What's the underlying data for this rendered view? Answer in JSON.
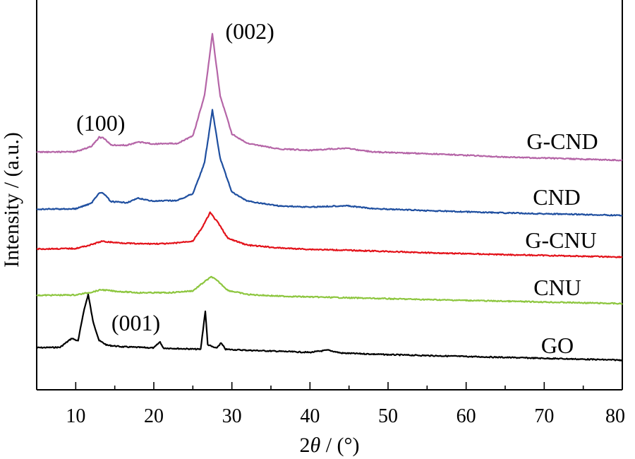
{
  "chart_data": {
    "type": "line",
    "xlabel_prefix": "2",
    "xlabel_var": "θ",
    "xlabel_suffix": " / (°)",
    "ylabel": "Intensity / (a.u.)",
    "xlim": [
      5,
      80
    ],
    "xticks": [
      10,
      20,
      30,
      40,
      50,
      60,
      70,
      80
    ],
    "y_ticks_shown": false,
    "grid": false,
    "legend": "labels beside each curve (right side)",
    "series": [
      {
        "name": "GO",
        "color": "#000000",
        "points": [
          [
            5,
            0.05
          ],
          [
            8,
            0.15
          ],
          [
            9.5,
            1.2
          ],
          [
            10.3,
            0.9
          ],
          [
            11.0,
            4.2
          ],
          [
            11.6,
            6.2
          ],
          [
            12.2,
            3.2
          ],
          [
            13.0,
            1.0
          ],
          [
            14,
            0.5
          ],
          [
            16,
            0.35
          ],
          [
            20,
            0.3
          ],
          [
            20.8,
            1.0
          ],
          [
            21.2,
            0.3
          ],
          [
            26,
            0.25
          ],
          [
            26.6,
            4.6
          ],
          [
            26.9,
            0.8
          ],
          [
            27.4,
            0.6
          ],
          [
            28,
            0.4
          ],
          [
            28.6,
            1.0
          ],
          [
            29.2,
            0.3
          ],
          [
            32,
            0.25
          ],
          [
            36.5,
            0.2
          ],
          [
            40,
            0.15
          ],
          [
            42.3,
            0.45
          ],
          [
            44,
            0.15
          ],
          [
            50,
            0.08
          ],
          [
            60,
            0.05
          ],
          [
            80,
            0.0
          ]
        ]
      },
      {
        "name": "CNU",
        "color": "#8dc63f",
        "points": [
          [
            5,
            0.15
          ],
          [
            10,
            0.25
          ],
          [
            12,
            0.6
          ],
          [
            13.3,
            0.9
          ],
          [
            15,
            0.75
          ],
          [
            18,
            0.6
          ],
          [
            22,
            0.65
          ],
          [
            25,
            0.9
          ],
          [
            26.5,
            2.0
          ],
          [
            27.4,
            2.6
          ],
          [
            28.3,
            2.0
          ],
          [
            29.5,
            1.0
          ],
          [
            32,
            0.55
          ],
          [
            36,
            0.4
          ],
          [
            40,
            0.35
          ],
          [
            45,
            0.3
          ],
          [
            55,
            0.2
          ],
          [
            65,
            0.12
          ],
          [
            80,
            0.0
          ]
        ]
      },
      {
        "name": "G-CNU",
        "color": "#e3121a",
        "points": [
          [
            5,
            0.1
          ],
          [
            10,
            0.2
          ],
          [
            12,
            0.6
          ],
          [
            13.3,
            0.95
          ],
          [
            15,
            0.85
          ],
          [
            18,
            0.75
          ],
          [
            22,
            0.8
          ],
          [
            25,
            1.1
          ],
          [
            26.3,
            2.6
          ],
          [
            27.2,
            4.0
          ],
          [
            28.2,
            3.0
          ],
          [
            29.5,
            1.4
          ],
          [
            32,
            0.75
          ],
          [
            36,
            0.5
          ],
          [
            40,
            0.4
          ],
          [
            45,
            0.35
          ],
          [
            55,
            0.2
          ],
          [
            65,
            0.1
          ],
          [
            80,
            0.0
          ]
        ]
      },
      {
        "name": "CND",
        "color": "#1f4fa0",
        "points": [
          [
            5,
            0.05
          ],
          [
            10,
            0.15
          ],
          [
            12,
            0.8
          ],
          [
            13.0,
            2.0
          ],
          [
            13.6,
            1.9
          ],
          [
            14.5,
            1.0
          ],
          [
            16.5,
            0.9
          ],
          [
            18,
            1.4
          ],
          [
            20,
            1.1
          ],
          [
            23,
            1.2
          ],
          [
            25,
            2.0
          ],
          [
            26.5,
            5.5
          ],
          [
            27.5,
            11.5
          ],
          [
            28.5,
            6.0
          ],
          [
            30,
            2.2
          ],
          [
            32,
            1.2
          ],
          [
            36,
            0.7
          ],
          [
            40,
            0.6
          ],
          [
            44.5,
            0.8
          ],
          [
            48,
            0.5
          ],
          [
            56,
            0.3
          ],
          [
            65,
            0.15
          ],
          [
            80,
            0.0
          ]
        ]
      },
      {
        "name": "G-CND",
        "color": "#b565a7",
        "points": [
          [
            5,
            0.05
          ],
          [
            10,
            0.15
          ],
          [
            12,
            0.8
          ],
          [
            13.0,
            1.9
          ],
          [
            13.6,
            1.8
          ],
          [
            14.5,
            1.0
          ],
          [
            16.5,
            1.0
          ],
          [
            18,
            1.4
          ],
          [
            20,
            1.2
          ],
          [
            23,
            1.3
          ],
          [
            25,
            2.2
          ],
          [
            26.5,
            7.0
          ],
          [
            27.5,
            14.3
          ],
          [
            28.5,
            7.0
          ],
          [
            30,
            2.5
          ],
          [
            32,
            1.4
          ],
          [
            36,
            0.8
          ],
          [
            40,
            0.7
          ],
          [
            44.5,
            1.0
          ],
          [
            48,
            0.6
          ],
          [
            56.5,
            0.45
          ],
          [
            65,
            0.2
          ],
          [
            80,
            0.0
          ]
        ]
      }
    ],
    "annotations": [
      {
        "text": "(001)",
        "x": 17.7
      },
      {
        "text": "(100)",
        "x": 13.2
      },
      {
        "text": "(002)",
        "x": 32.3
      }
    ]
  }
}
